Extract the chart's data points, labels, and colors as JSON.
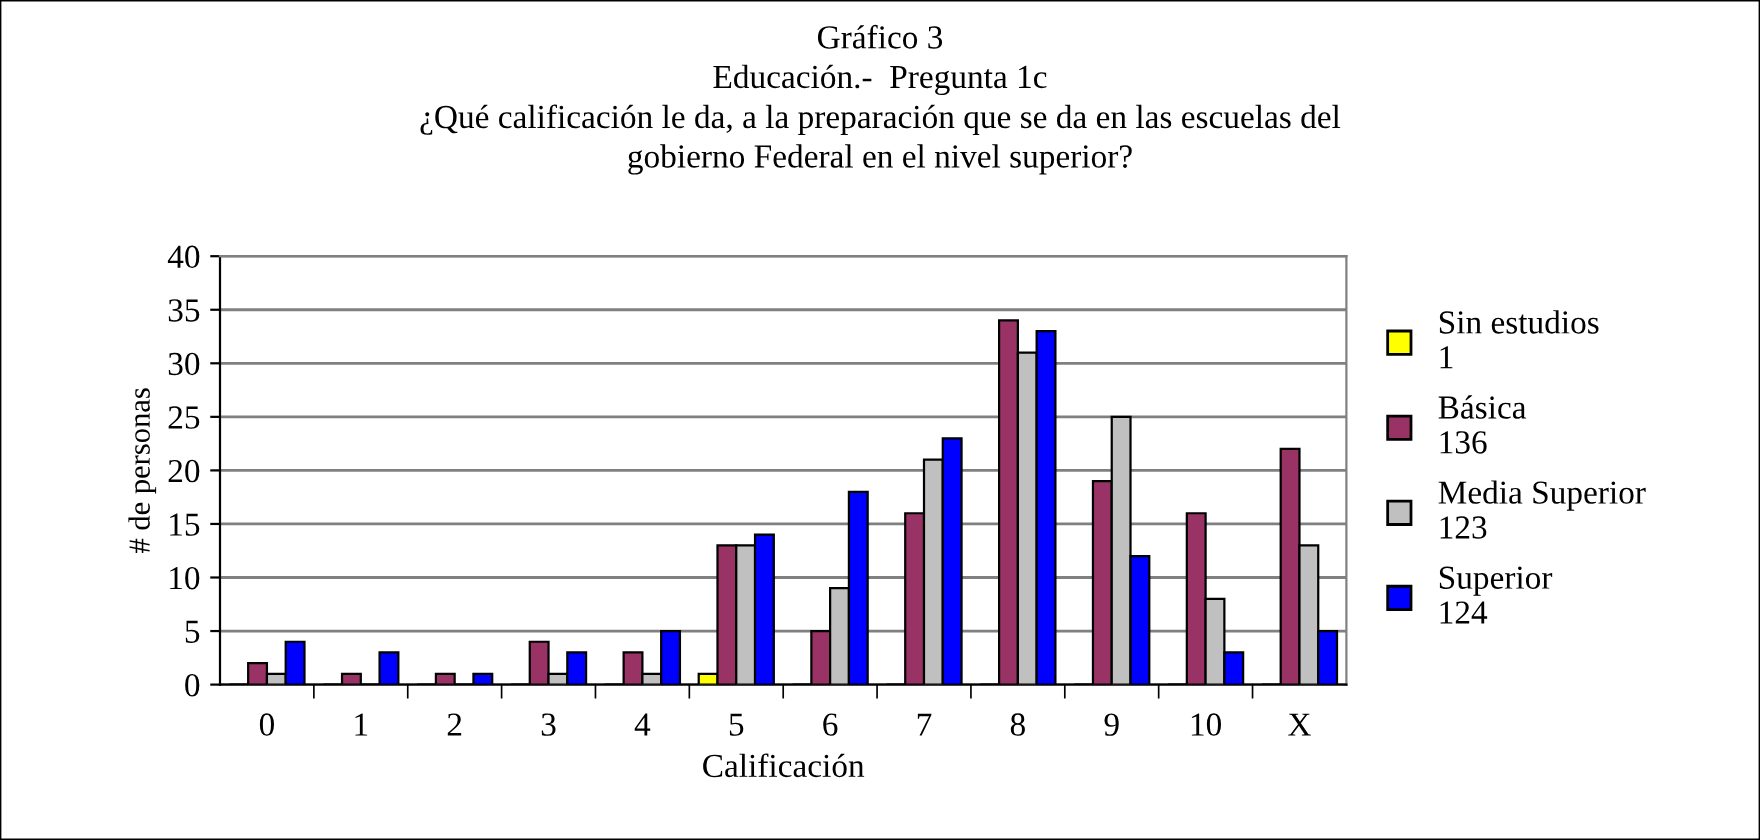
{
  "chart_data": {
    "type": "bar",
    "title": "Gráfico 3\nEducación.-  Pregunta 1c\n¿Qué calificación le da, a la preparación que se da en las escuelas del\ngobierno Federal en el nivel superior?",
    "xlabel": "Calificación",
    "ylabel": "# de personas",
    "categories": [
      "0",
      "1",
      "2",
      "3",
      "4",
      "5",
      "6",
      "7",
      "8",
      "9",
      "10",
      "X"
    ],
    "series": [
      {
        "name": "Sin estudios\n1",
        "color": "#ffff00",
        "values": [
          0,
          0,
          0,
          0,
          0,
          1,
          0,
          0,
          0,
          0,
          0,
          0
        ]
      },
      {
        "name": "Básica\n136",
        "color": "#993366",
        "values": [
          2,
          1,
          1,
          4,
          3,
          13,
          5,
          16,
          34,
          19,
          16,
          22
        ]
      },
      {
        "name": "Media Superior\n123",
        "color": "#c0c0c0",
        "values": [
          1,
          0,
          0,
          1,
          1,
          13,
          9,
          21,
          31,
          25,
          8,
          13
        ]
      },
      {
        "name": "Superior\n124",
        "color": "#0000ff",
        "values": [
          4,
          3,
          1,
          3,
          5,
          14,
          18,
          23,
          33,
          12,
          3,
          5
        ]
      }
    ],
    "ylim": [
      0,
      40
    ],
    "yticks": [
      0,
      5,
      10,
      15,
      20,
      25,
      30,
      35,
      40
    ],
    "grid": "y",
    "legend": "right"
  }
}
